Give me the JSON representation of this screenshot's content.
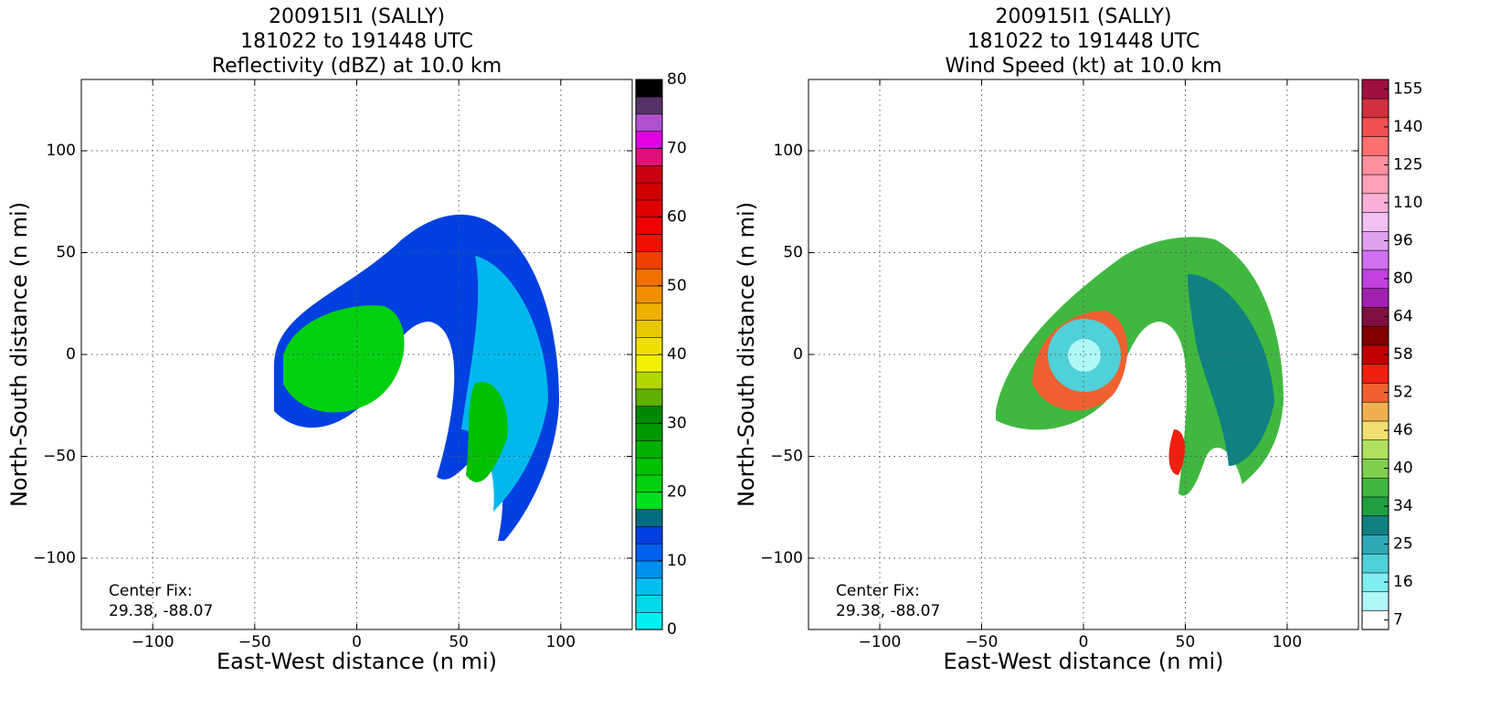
{
  "chart_data": [
    {
      "type": "heatmap",
      "title": [
        "200915I1 (SALLY)",
        "181022 to 191448 UTC",
        "Reflectivity (dBZ) at 10.0 km"
      ],
      "x_label": "East-West distance (n mi)",
      "y_label": "North-South distance (n mi)",
      "annotation": [
        "Center Fix:",
        "29.38, -88.07"
      ],
      "xlim": [
        -135,
        135
      ],
      "ylim": [
        -135,
        135
      ],
      "xticks": [
        {
          "value": -100,
          "label": "−100"
        },
        {
          "value": -50,
          "label": "−50"
        },
        0,
        50,
        100
      ],
      "yticks": [
        {
          "value": -100,
          "label": "−100"
        },
        {
          "value": -50,
          "label": "−50"
        },
        0,
        50,
        100
      ],
      "grid": true,
      "colorbar": {
        "clim": [
          0,
          80
        ],
        "ticks": [
          0,
          10,
          20,
          30,
          40,
          50,
          60,
          70,
          80
        ],
        "colors": [
          "#00f0f0",
          "#00d8e8",
          "#00bff0",
          "#0090f0",
          "#0060f0",
          "#0040e0",
          "#006e7e",
          "#00e020",
          "#00d010",
          "#00c000",
          "#00b000",
          "#009800",
          "#008800",
          "#60b000",
          "#b0d800",
          "#f0f000",
          "#f0e000",
          "#e8c800",
          "#f0b000",
          "#f09000",
          "#f07000",
          "#f04000",
          "#f01000",
          "#f00000",
          "#e00000",
          "#d00000",
          "#c80010",
          "#e0107a",
          "#e000e0",
          "#b050d0",
          "#553366",
          "#000000"
        ]
      }
    },
    {
      "type": "heatmap",
      "title": [
        "200915I1 (SALLY)",
        "181022 to 191448 UTC",
        "Wind Speed (kt) at 10.0 km"
      ],
      "x_label": "East-West distance (n mi)",
      "y_label": "North-South distance (n mi)",
      "annotation": [
        "Center Fix:",
        "29.38, -88.07"
      ],
      "xlim": [
        -135,
        135
      ],
      "ylim": [
        -135,
        135
      ],
      "xticks": [
        {
          "value": -100,
          "label": "−100"
        },
        {
          "value": -50,
          "label": "−50"
        },
        0,
        50,
        100
      ],
      "yticks": [
        {
          "value": -100,
          "label": "−100"
        },
        {
          "value": -50,
          "label": "−50"
        },
        0,
        50,
        100
      ],
      "grid": true,
      "colorbar": {
        "levels": [
          7,
          12,
          16,
          20,
          25,
          30,
          34,
          37,
          40,
          43,
          46,
          49,
          52,
          55,
          58,
          61,
          64,
          72,
          80,
          88,
          96,
          103,
          110,
          118,
          125,
          133,
          140,
          148,
          155
        ],
        "ticks": [
          7,
          16,
          25,
          34,
          40,
          46,
          52,
          58,
          64,
          80,
          96,
          110,
          125,
          140,
          155
        ],
        "colors": [
          "#ffffff",
          "#b0f8f8",
          "#80eef0",
          "#50d0d8",
          "#30a8b8",
          "#108080",
          "#20a040",
          "#40b840",
          "#80d050",
          "#b0e060",
          "#f0e070",
          "#f0b050",
          "#f06030",
          "#f02010",
          "#c00000",
          "#800000",
          "#801040",
          "#a020b0",
          "#c040e0",
          "#d070f0",
          "#e0a0f0",
          "#f0c0f0",
          "#f8b0d8",
          "#ffa0b8",
          "#ff90a0",
          "#ff7070",
          "#f05050",
          "#d03040",
          "#a01040"
        ]
      }
    }
  ]
}
